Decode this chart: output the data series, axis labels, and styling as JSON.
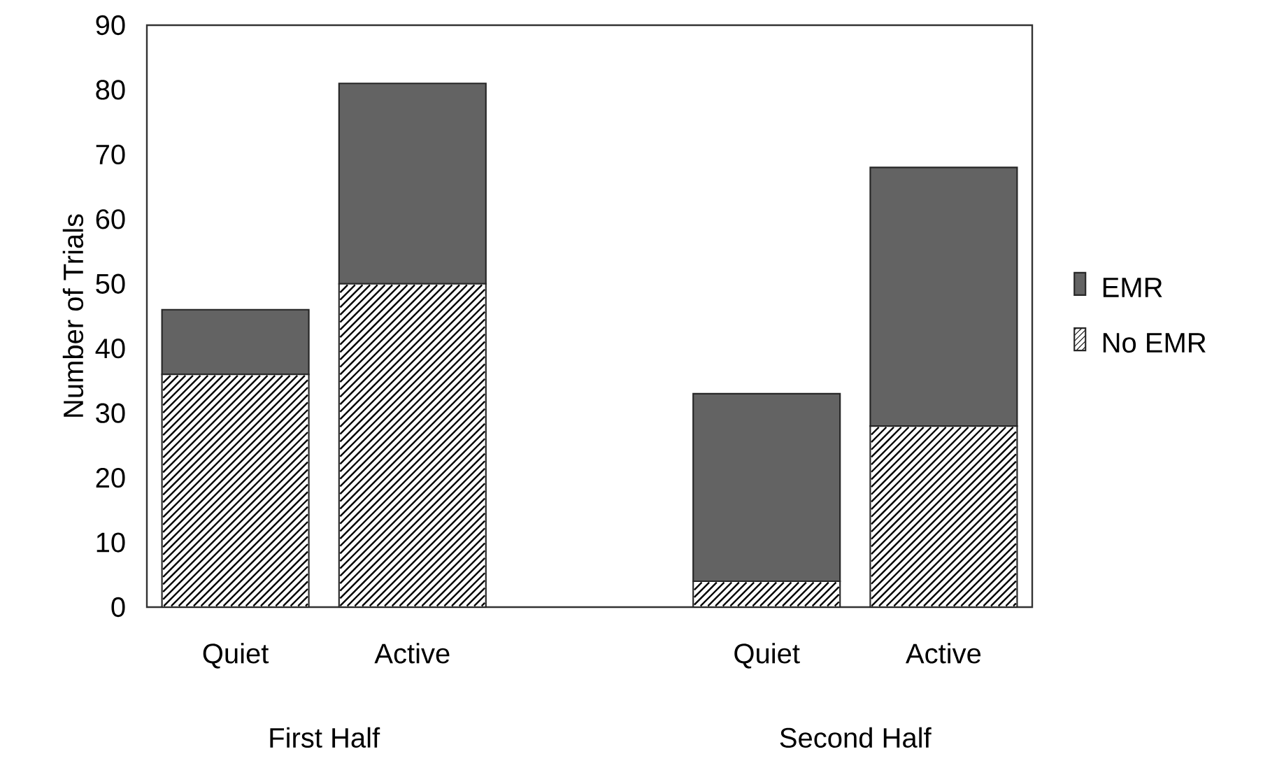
{
  "chart_data": {
    "type": "bar",
    "stacked": true,
    "ylabel": "Number of Trials",
    "categories": [
      "Quiet",
      "Active",
      null,
      "Quiet",
      "Active"
    ],
    "series": [
      {
        "name": "No EMR",
        "color": "#ffffff",
        "values": [
          36,
          50,
          null,
          4,
          28
        ]
      },
      {
        "name": "EMR",
        "color": "#636363",
        "values": [
          10,
          31,
          null,
          29,
          40
        ]
      }
    ],
    "ylim": [
      0,
      90
    ],
    "yticks": [
      0,
      10,
      20,
      30,
      40,
      50,
      60,
      70,
      80,
      90
    ],
    "legend": "right",
    "annotations": [
      "First Half",
      "Second Half"
    ]
  }
}
